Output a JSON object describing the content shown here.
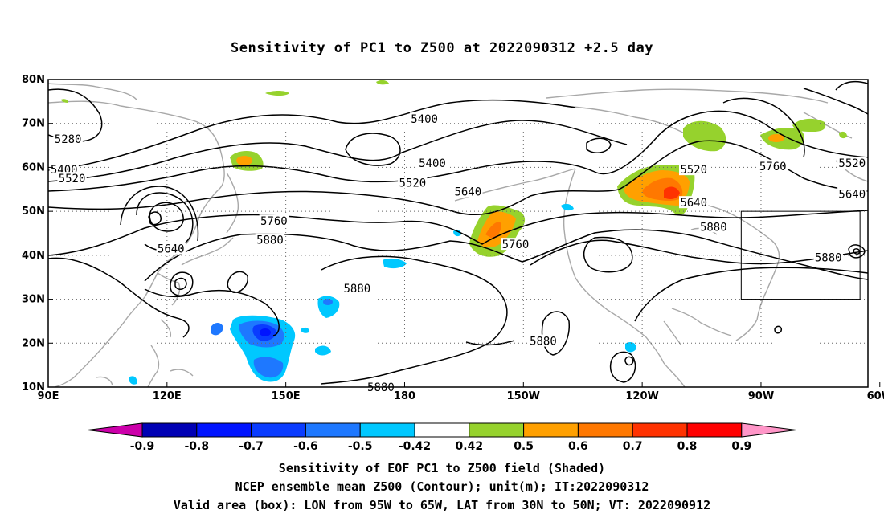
{
  "title": "Sensitivity of PC1 to Z500 at 2022090312 +2.5 day",
  "map": {
    "lon_range": [
      90,
      297
    ],
    "lat_range": [
      10,
      80
    ],
    "lon_ticks": [
      {
        "lon": 90,
        "label": "90E"
      },
      {
        "lon": 120,
        "label": "120E"
      },
      {
        "lon": 150,
        "label": "150E"
      },
      {
        "lon": 180,
        "label": "180"
      },
      {
        "lon": 210,
        "label": "150W"
      },
      {
        "lon": 240,
        "label": "120W"
      },
      {
        "lon": 270,
        "label": "90W"
      },
      {
        "lon": 300,
        "label": "60W"
      }
    ],
    "lat_ticks": [
      {
        "lat": 10,
        "label": "10N"
      },
      {
        "lat": 20,
        "label": "20N"
      },
      {
        "lat": 30,
        "label": "30N"
      },
      {
        "lat": 40,
        "label": "40N"
      },
      {
        "lat": 50,
        "label": "50N"
      },
      {
        "lat": 60,
        "label": "60N"
      },
      {
        "lat": 70,
        "label": "70N"
      },
      {
        "lat": 80,
        "label": "80N"
      }
    ],
    "valid_box": {
      "lon_west": 265,
      "lon_east": 295,
      "lat_south": 30,
      "lat_north": 50
    },
    "contour_labels": [
      {
        "text": "5280",
        "lon": 95,
        "lat": 66.5
      },
      {
        "text": "5400",
        "lon": 94,
        "lat": 59.5
      },
      {
        "text": "5520",
        "lon": 96,
        "lat": 57.5
      },
      {
        "text": "5400",
        "lon": 185,
        "lat": 71
      },
      {
        "text": "5400",
        "lon": 187,
        "lat": 61
      },
      {
        "text": "5520",
        "lon": 182,
        "lat": 56.5
      },
      {
        "text": "5640",
        "lon": 196,
        "lat": 54.5
      },
      {
        "text": "5760",
        "lon": 147,
        "lat": 47.8
      },
      {
        "text": "5640",
        "lon": 121,
        "lat": 41.5
      },
      {
        "text": "5880",
        "lon": 146,
        "lat": 43.5
      },
      {
        "text": "5880",
        "lon": 168,
        "lat": 32.5
      },
      {
        "text": "5760",
        "lon": 208,
        "lat": 42.5
      },
      {
        "text": "5880",
        "lon": 215,
        "lat": 20.5
      },
      {
        "text": "5880",
        "lon": 174,
        "lat": 10
      },
      {
        "text": "5520",
        "lon": 253,
        "lat": 59.5
      },
      {
        "text": "5640",
        "lon": 253,
        "lat": 52
      },
      {
        "text": "5880",
        "lon": 258,
        "lat": 46.5
      },
      {
        "text": "5760",
        "lon": 273,
        "lat": 60.3
      },
      {
        "text": "5880",
        "lon": 287,
        "lat": 39.5
      },
      {
        "text": "5520",
        "lon": 293,
        "lat": 61
      },
      {
        "text": "5640",
        "lon": 293,
        "lat": 54
      }
    ]
  },
  "colorbar": {
    "labels": [
      "-0.9",
      "-0.8",
      "-0.7",
      "-0.6",
      "-0.5",
      "-0.42",
      "0.42",
      "0.5",
      "0.6",
      "0.7",
      "0.8",
      "0.9"
    ],
    "colors": [
      "#cc00aa",
      "#0000b4",
      "#0014ff",
      "#0a3cff",
      "#1e78ff",
      "#00c8ff",
      "#ffffff",
      "#96d22d",
      "#ffa000",
      "#ff7800",
      "#ff3200",
      "#ff0000",
      "#ff96c8"
    ]
  },
  "captions": [
    "Sensitivity of EOF PC1 to Z500 field (Shaded)",
    "NCEP ensemble mean Z500 (Contour); unit(m); IT:2022090312",
    "Valid area (box): LON from 95W to 65W, LAT from 30N to 50N; VT: 2022090912"
  ]
}
